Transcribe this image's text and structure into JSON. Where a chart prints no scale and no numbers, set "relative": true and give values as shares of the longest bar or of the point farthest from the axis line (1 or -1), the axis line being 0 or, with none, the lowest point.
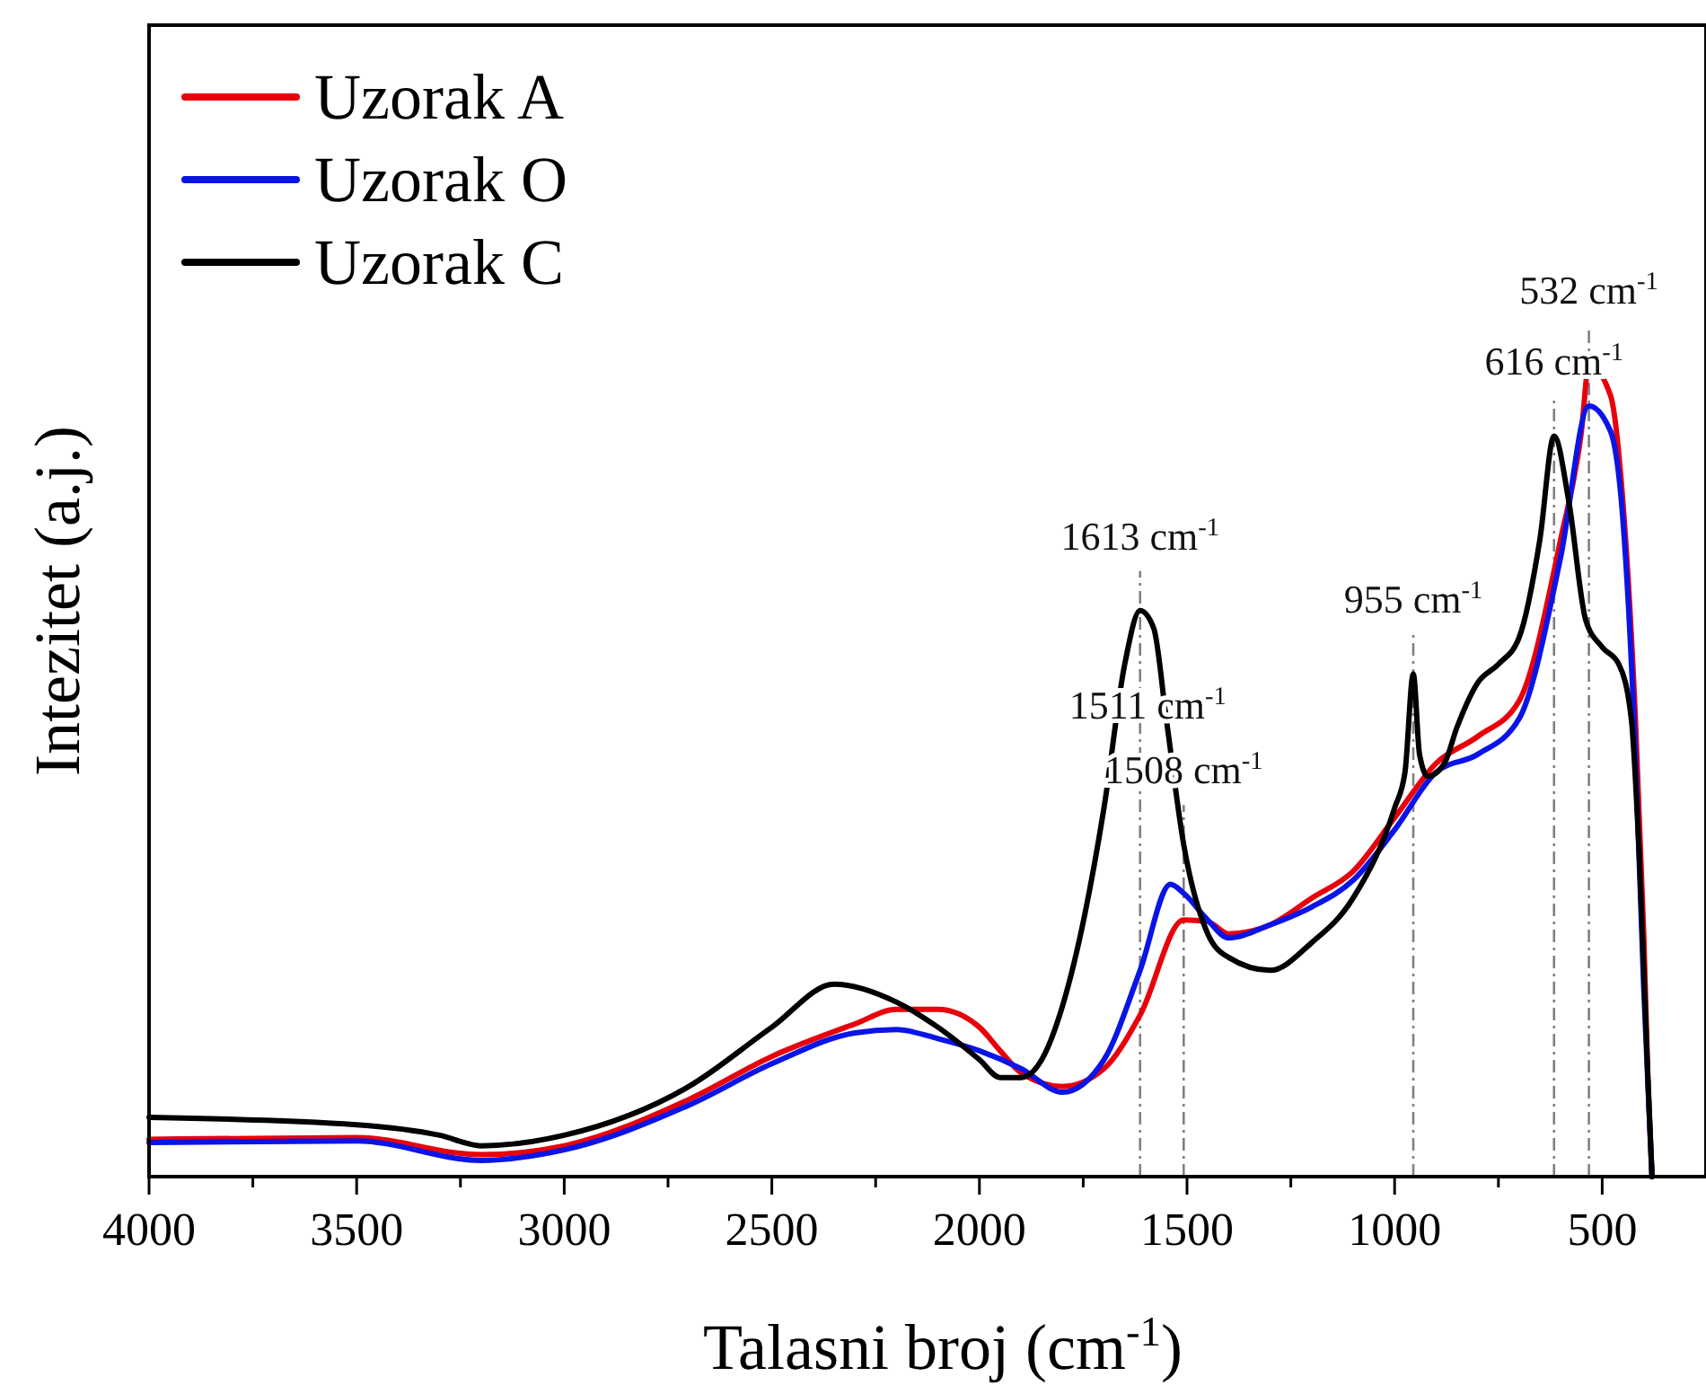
{
  "chart_data": {
    "type": "line",
    "relative": true,
    "xlabel": "Talasni broj (cm$^{-1}$)",
    "ylabel": "Intezitet (a.j.)",
    "xlim": [
      4000,
      250
    ],
    "xticks": [
      4000,
      {
        "value": 3750,
        "label": null
      },
      3500,
      {
        "value": 3250,
        "label": null
      },
      3000,
      {
        "value": 2750,
        "label": null
      },
      2500,
      {
        "value": 2250,
        "label": null
      },
      2000,
      {
        "value": 1750,
        "label": null
      },
      1500,
      {
        "value": 1250,
        "label": null
      },
      1000,
      {
        "value": 750,
        "label": null
      },
      500
    ],
    "tick_labels": "x",
    "grid": false,
    "legend": "top left",
    "line_style": "solid",
    "marker": "none",
    "series": [
      {
        "name": "Uzorak A",
        "color": "#e8000b",
        "x": [
          4000,
          3500,
          3200,
          3000,
          2700,
          2500,
          2300,
          2200,
          2100,
          2000,
          1950,
          1900,
          1800,
          1700,
          1613,
          1508,
          1450,
          1400,
          1300,
          1200,
          1100,
          1000,
          900,
          800,
          700,
          600,
          550,
          532,
          480,
          450,
          420,
          400,
          390,
          380
        ],
        "values": [
          0.046,
          0.048,
          0.027,
          0.038,
          0.095,
          0.148,
          0.188,
          0.206,
          0.206,
          0.184,
          0.155,
          0.128,
          0.111,
          0.133,
          0.199,
          0.316,
          0.314,
          0.299,
          0.31,
          0.343,
          0.376,
          0.442,
          0.509,
          0.542,
          0.586,
          0.785,
          0.918,
          1.0,
          0.962,
          0.83,
          0.564,
          0.3,
          0.122,
          0
        ]
      },
      {
        "name": "Uzorak O",
        "color": "#0a14e6",
        "x": [
          4000,
          3500,
          3200,
          3000,
          2700,
          2500,
          2300,
          2200,
          2100,
          2000,
          1900,
          1800,
          1700,
          1613,
          1540,
          1508,
          1450,
          1400,
          1300,
          1200,
          1100,
          1000,
          900,
          800,
          700,
          600,
          532,
          480,
          450,
          420,
          400,
          380
        ],
        "values": [
          0.042,
          0.044,
          0.02,
          0.033,
          0.088,
          0.139,
          0.177,
          0.181,
          0.17,
          0.155,
          0.133,
          0.104,
          0.144,
          0.254,
          0.36,
          0.349,
          0.316,
          0.294,
          0.31,
          0.332,
          0.365,
          0.427,
          0.498,
          0.52,
          0.564,
          0.763,
          0.949,
          0.918,
          0.808,
          0.52,
          0.232,
          0
        ]
      },
      {
        "name": "Uzorak C",
        "color": "#000000",
        "x": [
          4000,
          3500,
          3300,
          3200,
          3000,
          2700,
          2500,
          2350,
          2200,
          2100,
          2000,
          1950,
          1900,
          1850,
          1800,
          1700,
          1650,
          1613,
          1580,
          1550,
          1508,
          1450,
          1400,
          1300,
          1200,
          1100,
          1000,
          975,
          955,
          940,
          920,
          880,
          850,
          800,
          750,
          700,
          650,
          616,
          580,
          540,
          500,
          460,
          430,
          410,
          390,
          380
        ],
        "values": [
          0.073,
          0.064,
          0.051,
          0.038,
          0.051,
          0.111,
          0.184,
          0.237,
          0.215,
          0.184,
          0.144,
          0.122,
          0.122,
          0.144,
          0.21,
          0.454,
          0.631,
          0.697,
          0.675,
          0.564,
          0.409,
          0.299,
          0.27,
          0.254,
          0.288,
          0.343,
          0.454,
          0.498,
          0.619,
          0.52,
          0.493,
          0.509,
          0.553,
          0.608,
          0.631,
          0.664,
          0.785,
          0.912,
          0.83,
          0.686,
          0.652,
          0.631,
          0.564,
          0.387,
          0.122,
          0
        ]
      }
    ],
    "ref_lines": [
      {
        "axis": "x",
        "value": 1613,
        "label": "1613 cm$^{-1}$",
        "color": "#808080",
        "line_style": "dashed"
      },
      {
        "axis": "x",
        "value": 1508,
        "label": "1508 cm$^{-1}$",
        "color": "#808080",
        "line_style": "dashed"
      },
      {
        "axis": "x",
        "value": 955,
        "label": "955 cm$^{-1}$",
        "color": "#808080",
        "line_style": "dashed"
      },
      {
        "axis": "x",
        "value": 616,
        "label": "616 cm$^{-1}$",
        "color": "#808080",
        "line_style": "dashed"
      },
      {
        "axis": "x",
        "value": 532,
        "label": "532 cm$^{-1}$",
        "color": "#808080",
        "line_style": "dashed"
      }
    ],
    "annotations": [
      "1511 cm$^{-1}$"
    ]
  }
}
